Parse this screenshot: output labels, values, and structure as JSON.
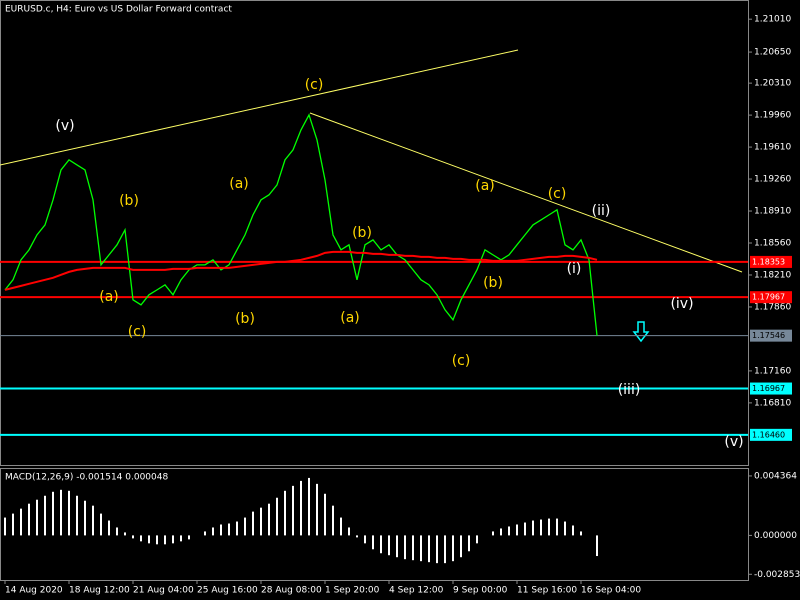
{
  "chart_data": [
    {
      "type": "line",
      "title": "EURUSD.c, H4:  Euro vs US Dollar Forward contract",
      "categories": [
        "14 Aug 2020",
        null,
        null,
        null,
        null,
        null,
        null,
        null,
        "18 Aug 12:00",
        null,
        null,
        null,
        null,
        null,
        null,
        null,
        "21 Aug 04:00",
        null,
        null,
        null,
        null,
        null,
        null,
        null,
        "25 Aug 16:00",
        null,
        null,
        null,
        null,
        null,
        null,
        null,
        "28 Aug 08:00",
        null,
        null,
        null,
        null,
        null,
        null,
        null,
        "1 Sep 20:00",
        null,
        null,
        null,
        null,
        null,
        null,
        null,
        "4 Sep 12:00",
        null,
        null,
        null,
        null,
        null,
        null,
        null,
        "9 Sep 00:00",
        null,
        null,
        null,
        null,
        null,
        null,
        null,
        "11 Sep 16:00",
        null,
        null,
        null,
        null,
        null,
        null,
        null,
        "16 Sep 04:00",
        null,
        null
      ],
      "series": [
        {
          "color": "#00ff00",
          "values": [
            1.18047,
            1.18157,
            1.18376,
            1.18485,
            1.18649,
            1.18758,
            1.19032,
            1.1936,
            1.1947,
            1.19415,
            1.1936,
            1.19032,
            1.18321,
            1.1843,
            1.1854,
            1.18704,
            1.17938,
            1.17883,
            1.17993,
            1.18047,
            1.18102,
            1.17993,
            1.18157,
            1.18266,
            1.18321,
            1.18321,
            1.18376,
            1.18266,
            1.18321,
            1.18485,
            1.18649,
            1.18868,
            1.19032,
            1.19087,
            1.19196,
            1.1947,
            1.19579,
            1.19798,
            1.19962,
            1.19688,
            1.19251,
            1.18649,
            1.18485,
            1.1854,
            1.18157,
            1.1854,
            1.18594,
            1.18485,
            1.1854,
            1.1843,
            1.18376,
            1.18266,
            1.18157,
            1.18102,
            1.17993,
            1.17829,
            1.17719,
            1.17938,
            1.18102,
            1.18266,
            1.18485,
            1.1843,
            1.18376,
            1.1843,
            1.1854,
            1.18649,
            1.18758,
            1.18813,
            1.18868,
            1.18923,
            1.1854,
            1.18485,
            1.18594,
            1.18376,
            1.17546
          ]
        },
        {
          "color": "#ff0000",
          "values": [
            1.18047,
            1.18069,
            1.18091,
            1.18113,
            1.18135,
            1.18157,
            1.18179,
            1.18212,
            1.18244,
            1.18266,
            1.18277,
            1.18288,
            1.18288,
            1.18288,
            1.18288,
            1.18288,
            1.18266,
            1.18266,
            1.18266,
            1.18266,
            1.18266,
            1.18277,
            1.18277,
            1.18277,
            1.18288,
            1.18288,
            1.18288,
            1.18288,
            1.18288,
            1.18299,
            1.1831,
            1.18321,
            1.18332,
            1.18343,
            1.18354,
            1.18354,
            1.18365,
            1.18376,
            1.18397,
            1.18419,
            1.18452,
            1.18463,
            1.18463,
            1.18463,
            1.18452,
            1.18452,
            1.18441,
            1.18441,
            1.1843,
            1.1843,
            1.18419,
            1.18419,
            1.18408,
            1.18408,
            1.18397,
            1.18397,
            1.18386,
            1.18386,
            1.18376,
            1.18376,
            1.18376,
            1.18365,
            1.18365,
            1.18365,
            1.18365,
            1.18376,
            1.18386,
            1.18397,
            1.18408,
            1.18408,
            1.18419,
            1.18419,
            1.18408,
            1.18397,
            1.18376
          ]
        }
      ],
      "ylim": [
        1.1613,
        1.2122
      ],
      "yticks": [
        {
          "value": 1.2101,
          "label": "1.21010"
        },
        {
          "value": 1.2065,
          "label": "1.20650"
        },
        {
          "value": 1.2031,
          "label": "1.20310"
        },
        {
          "value": 1.1996,
          "label": "1.19960"
        },
        {
          "value": 1.1961,
          "label": "1.19610"
        },
        {
          "value": 1.1926,
          "label": "1.19260"
        },
        {
          "value": 1.1891,
          "label": "1.18910"
        },
        {
          "value": 1.1856,
          "label": "1.18560"
        },
        {
          "value": 1.1821,
          "label": "1.18210"
        },
        {
          "value": 1.1786,
          "label": "1.17860"
        },
        {
          "value": 1.1716,
          "label": "1.17160"
        },
        {
          "value": 1.1681,
          "label": "1.16810"
        }
      ],
      "levels": [
        {
          "value": 1.18353,
          "color": "#ff0000"
        },
        {
          "value": 1.17967,
          "color": "#ff0000"
        },
        {
          "value": 1.17546,
          "color": "#778899"
        },
        {
          "value": 1.16967,
          "color": "#00ffff"
        },
        {
          "value": 1.1646,
          "label": "1.16460",
          "color": "#00ffff"
        }
      ],
      "annotations": [
        {
          "text": "(v)",
          "color": "#ffffff"
        },
        {
          "text": "(b)",
          "color": "#ffd700"
        },
        {
          "text": "(a)",
          "color": "#ffd700"
        },
        {
          "text": "(c)",
          "color": "#ffd700"
        },
        {
          "text": "(a)",
          "color": "#ffd700"
        },
        {
          "text": "(b)",
          "color": "#ffd700"
        },
        {
          "text": "(c)",
          "color": "#ffd700"
        },
        {
          "text": "(b)",
          "color": "#ffd700"
        },
        {
          "text": "(a)",
          "color": "#ffd700"
        },
        {
          "text": "(c)",
          "color": "#ffd700"
        },
        {
          "text": "(a)",
          "color": "#ffd700"
        },
        {
          "text": "(b)",
          "color": "#ffd700"
        },
        {
          "text": "(c)",
          "color": "#ffd700"
        },
        {
          "text": "(ii)",
          "color": "#ffffff"
        },
        {
          "text": "(i)",
          "color": "#ffffff"
        },
        {
          "text": "(iv)",
          "color": "#ffffff"
        },
        {
          "text": "(iii)",
          "color": "#ffffff"
        },
        {
          "text": "(v)",
          "color": "#ffffff"
        }
      ]
    },
    {
      "type": "bar",
      "title": "MACD(12,26,9) -0.001514 0.000048",
      "color": "#ffffff",
      "values": [
        0.001309,
        0.0016,
        0.001964,
        0.002327,
        0.002618,
        0.002909,
        0.0032,
        0.003345,
        0.003273,
        0.002909,
        0.002545,
        0.002182,
        0.0016,
        0.001091,
        0.000582,
        0.000218,
        -0.000218,
        -0.000436,
        -0.000582,
        -0.000655,
        -0.000655,
        -0.000582,
        -0.000436,
        -0.000291,
        0,
        0.000291,
        0.000582,
        0.0008,
        0.000873,
        0.001018,
        0.001309,
        0.001745,
        0.002036,
        0.002327,
        0.002764,
        0.003273,
        0.003636,
        0.004,
        0.004218,
        0.003782,
        0.003055,
        0.002182,
        0.001309,
        0.000582,
        -0.000145,
        -0.000582,
        -0.001018,
        -0.001309,
        -0.001455,
        -0.0016,
        -0.001745,
        -0.001818,
        -0.001891,
        -0.001964,
        -0.002036,
        -0.002036,
        -0.001891,
        -0.0016,
        -0.001164,
        -0.000582,
        0,
        0.000291,
        0.000509,
        0.000655,
        0.0008,
        0.000945,
        0.001091,
        0.001164,
        0.001236,
        0.001236,
        0.001018,
        0.000727,
        0.000291,
        0,
        -0.001514
      ],
      "ylim": [
        -0.003273,
        0.004873
      ],
      "yticks": [
        0.004364,
        {
          "value": 0,
          "label": "0.000000"
        },
        -0.002853
      ]
    }
  ]
}
